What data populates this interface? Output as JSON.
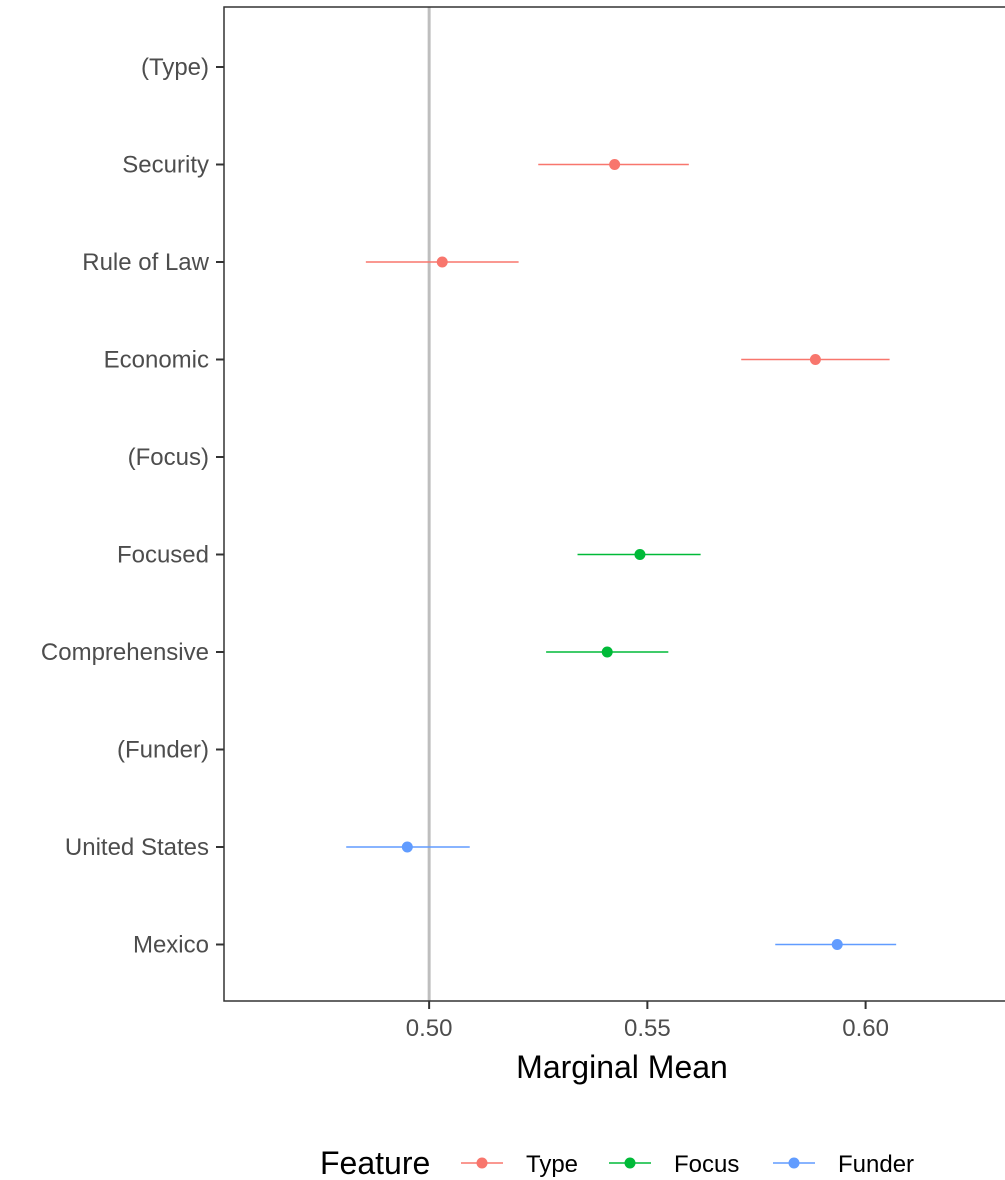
{
  "chart_data": {
    "type": "scatter",
    "xlabel": "Marginal Mean",
    "ylabel": "",
    "xlim": [
      0.453,
      0.634
    ],
    "x_ticks": [
      "0.50",
      "0.55",
      "0.60"
    ],
    "x_tick_values": [
      0.5,
      0.55,
      0.6
    ],
    "reference_line": 0.5,
    "categories": [
      "(Type)",
      "Security",
      "Rule of Law",
      "Economic",
      "(Focus)",
      "Focused",
      "Comprehensive",
      "(Funder)",
      "United States",
      "Mexico"
    ],
    "series": [
      {
        "name": "Type",
        "color": "#F8766D",
        "points": [
          {
            "category": "Security",
            "estimate": 0.5425,
            "lower": 0.525,
            "upper": 0.5595
          },
          {
            "category": "Rule of Law",
            "estimate": 0.503,
            "lower": 0.4855,
            "upper": 0.5205
          },
          {
            "category": "Economic",
            "estimate": 0.5885,
            "lower": 0.5715,
            "upper": 0.6055
          }
        ]
      },
      {
        "name": "Focus",
        "color": "#00BA38",
        "points": [
          {
            "category": "Focused",
            "estimate": 0.5483,
            "lower": 0.534,
            "upper": 0.5622
          },
          {
            "category": "Comprehensive",
            "estimate": 0.5408,
            "lower": 0.5268,
            "upper": 0.5548
          }
        ]
      },
      {
        "name": "Funder",
        "color": "#619CFF",
        "points": [
          {
            "category": "United States",
            "estimate": 0.495,
            "lower": 0.481,
            "upper": 0.5093
          },
          {
            "category": "Mexico",
            "estimate": 0.5935,
            "lower": 0.5793,
            "upper": 0.607
          }
        ]
      }
    ],
    "legend": {
      "title": "Feature",
      "position": "bottom",
      "items": [
        "Type",
        "Focus",
        "Funder"
      ]
    },
    "grid": false
  }
}
